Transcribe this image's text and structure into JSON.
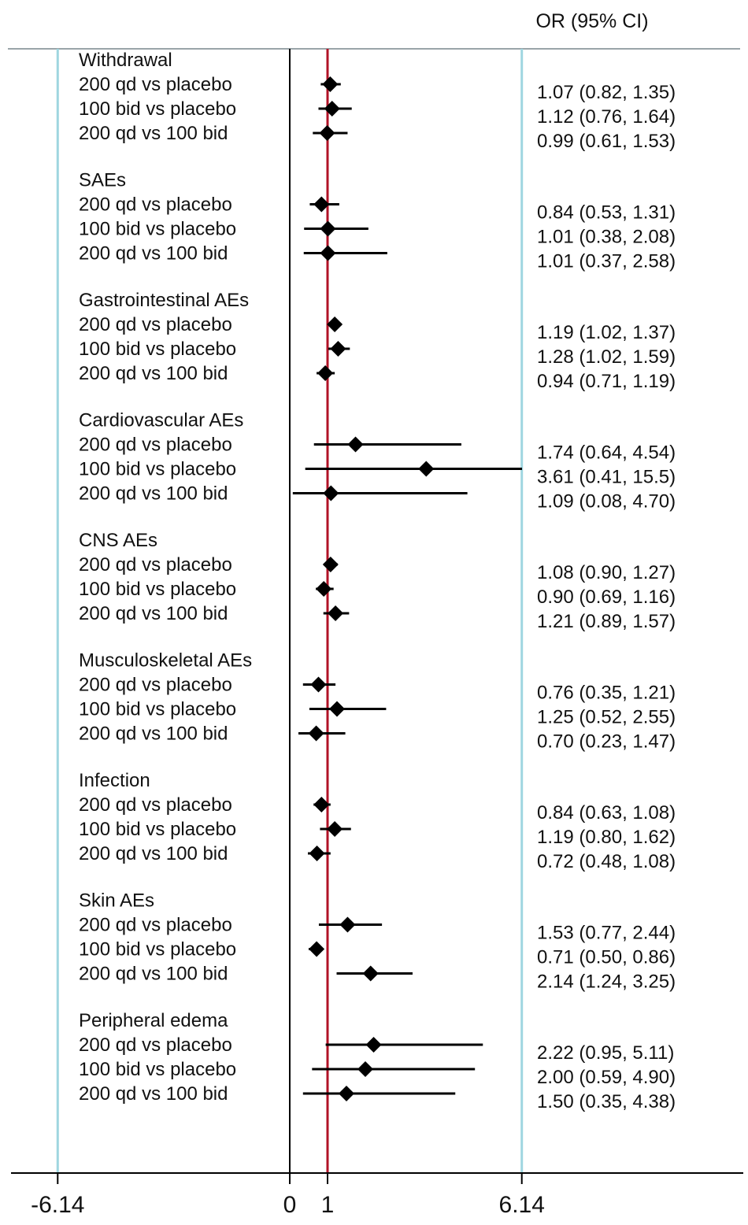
{
  "chart_data": {
    "type": "forest",
    "column_header": "OR (95% CI)",
    "x_ticks": [
      {
        "value": -6.14,
        "label": "-6.14"
      },
      {
        "value": 0,
        "label": "0"
      },
      {
        "value": 1,
        "label": "1"
      },
      {
        "value": 6.14,
        "label": "6.14"
      }
    ],
    "null_line": 1,
    "reference_lines": [
      -6.14,
      6.14
    ],
    "xlim": [
      -7.3,
      12.0
    ],
    "groups": [
      {
        "name": "Withdrawal",
        "rows": [
          {
            "label": "200 qd vs placebo",
            "or": 1.07,
            "lo": 0.82,
            "hi": 1.35,
            "text": "1.07 (0.82, 1.35)"
          },
          {
            "label": "100 bid vs placebo",
            "or": 1.12,
            "lo": 0.76,
            "hi": 1.64,
            "text": "1.12 (0.76, 1.64)"
          },
          {
            "label": "200 qd vs 100 bid",
            "or": 0.99,
            "lo": 0.61,
            "hi": 1.53,
            "text": "0.99 (0.61, 1.53)"
          }
        ]
      },
      {
        "name": "SAEs",
        "rows": [
          {
            "label": "200 qd vs placebo",
            "or": 0.84,
            "lo": 0.53,
            "hi": 1.31,
            "text": "0.84 (0.53, 1.31)"
          },
          {
            "label": "100 bid vs placebo",
            "or": 1.01,
            "lo": 0.38,
            "hi": 2.08,
            "text": "1.01 (0.38, 2.08)"
          },
          {
            "label": "200 qd vs 100 bid",
            "or": 1.01,
            "lo": 0.37,
            "hi": 2.58,
            "text": "1.01 (0.37, 2.58)"
          }
        ]
      },
      {
        "name": "Gastrointestinal AEs",
        "rows": [
          {
            "label": "200 qd vs placebo",
            "or": 1.19,
            "lo": 1.02,
            "hi": 1.37,
            "text": "1.19 (1.02, 1.37)"
          },
          {
            "label": "100 bid vs placebo",
            "or": 1.28,
            "lo": 1.02,
            "hi": 1.59,
            "text": "1.28 (1.02, 1.59)"
          },
          {
            "label": "200 qd vs 100 bid",
            "or": 0.94,
            "lo": 0.71,
            "hi": 1.19,
            "text": "0.94 (0.71, 1.19)"
          }
        ]
      },
      {
        "name": "Cardiovascular AEs",
        "rows": [
          {
            "label": "200 qd vs placebo",
            "or": 1.74,
            "lo": 0.64,
            "hi": 4.54,
            "text": "1.74 (0.64, 4.54)"
          },
          {
            "label": "100 bid vs placebo",
            "or": 3.61,
            "lo": 0.41,
            "hi": 15.5,
            "text": "3.61 (0.41, 15.5)"
          },
          {
            "label": "200 qd vs 100 bid",
            "or": 1.09,
            "lo": 0.08,
            "hi": 4.7,
            "text": "1.09 (0.08, 4.70)"
          }
        ]
      },
      {
        "name": "CNS AEs",
        "rows": [
          {
            "label": "200 qd vs placebo",
            "or": 1.08,
            "lo": 0.9,
            "hi": 1.27,
            "text": "1.08 (0.90, 1.27)"
          },
          {
            "label": "100 bid vs placebo",
            "or": 0.9,
            "lo": 0.69,
            "hi": 1.16,
            "text": "0.90 (0.69, 1.16)"
          },
          {
            "label": "200 qd vs 100 bid",
            "or": 1.21,
            "lo": 0.89,
            "hi": 1.57,
            "text": "1.21 (0.89, 1.57)"
          }
        ]
      },
      {
        "name": "Musculoskeletal AEs",
        "rows": [
          {
            "label": "200 qd vs placebo",
            "or": 0.76,
            "lo": 0.35,
            "hi": 1.21,
            "text": "0.76 (0.35, 1.21)"
          },
          {
            "label": "100 bid vs placebo",
            "or": 1.25,
            "lo": 0.52,
            "hi": 2.55,
            "text": "1.25 (0.52, 2.55)"
          },
          {
            "label": "200 qd vs 100 bid",
            "or": 0.7,
            "lo": 0.23,
            "hi": 1.47,
            "text": "0.70 (0.23, 1.47)"
          }
        ]
      },
      {
        "name": "Infection",
        "rows": [
          {
            "label": "200 qd vs placebo",
            "or": 0.84,
            "lo": 0.63,
            "hi": 1.08,
            "text": "0.84 (0.63, 1.08)"
          },
          {
            "label": "100 bid vs placebo",
            "or": 1.19,
            "lo": 0.8,
            "hi": 1.62,
            "text": "1.19 (0.80, 1.62)"
          },
          {
            "label": "200 qd vs 100 bid",
            "or": 0.72,
            "lo": 0.48,
            "hi": 1.08,
            "text": "0.72 (0.48, 1.08)"
          }
        ]
      },
      {
        "name": "Skin AEs",
        "rows": [
          {
            "label": "200 qd vs placebo",
            "or": 1.53,
            "lo": 0.77,
            "hi": 2.44,
            "text": "1.53 (0.77, 2.44)"
          },
          {
            "label": "100 bid vs placebo",
            "or": 0.71,
            "lo": 0.5,
            "hi": 0.86,
            "text": "0.71 (0.50, 0.86)"
          },
          {
            "label": "200 qd vs 100 bid",
            "or": 2.14,
            "lo": 1.24,
            "hi": 3.25,
            "text": "2.14 (1.24, 3.25)"
          }
        ]
      },
      {
        "name": "Peripheral edema",
        "rows": [
          {
            "label": "200 qd vs placebo",
            "or": 2.22,
            "lo": 0.95,
            "hi": 5.11,
            "text": "2.22 (0.95, 5.11)"
          },
          {
            "label": "100 bid vs placebo",
            "or": 2.0,
            "lo": 0.59,
            "hi": 4.9,
            "text": "2.00 (0.59, 4.90)"
          },
          {
            "label": "200 qd vs 100 bid",
            "or": 1.5,
            "lo": 0.35,
            "hi": 4.38,
            "text": "1.50 (0.35, 4.38)"
          }
        ]
      }
    ],
    "colors": {
      "null_line": "#b11226",
      "reference_lines": "#9fd6e0",
      "axis": "#000000",
      "marker": "#000000"
    }
  }
}
